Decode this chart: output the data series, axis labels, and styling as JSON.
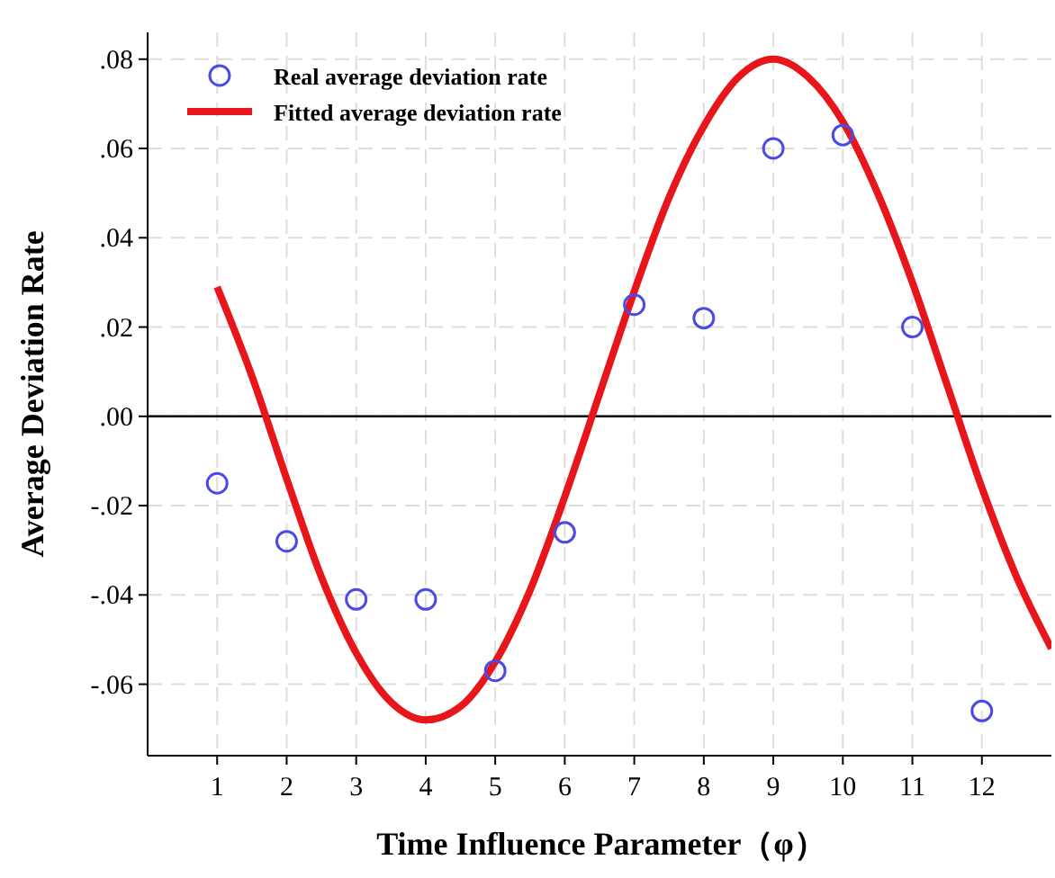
{
  "chart_data": {
    "type": "scatter",
    "xlabel": "Time Influence Parameter（φ）",
    "ylabel": "Average Deviation Rate",
    "xlim": [
      0,
      13
    ],
    "ylim": [
      -0.076,
      0.086
    ],
    "xticks": [
      1,
      2,
      3,
      4,
      5,
      6,
      7,
      8,
      9,
      10,
      11,
      12
    ],
    "yticks": [
      {
        "value": -0.06,
        "label": "-.06"
      },
      {
        "value": -0.04,
        "label": "-.04"
      },
      {
        "value": -0.02,
        "label": "-.02"
      },
      {
        "value": 0,
        "label": ".00"
      },
      {
        "value": 0.02,
        "label": ".02"
      },
      {
        "value": 0.04,
        "label": ".04"
      },
      {
        "value": 0.06,
        "label": ".06"
      },
      {
        "value": 0.08,
        "label": ".08"
      }
    ],
    "grid": true,
    "legend": "top left",
    "ref_lines": [
      {
        "axis": "y",
        "value": 0,
        "color": "#000000"
      }
    ],
    "series": [
      {
        "name": "Real average deviation rate",
        "marker": "circle",
        "color": "#4a4ae8",
        "x": [
          1,
          2,
          3,
          4,
          5,
          6,
          7,
          8,
          9,
          10,
          11,
          12
        ],
        "values": [
          -0.015,
          -0.028,
          -0.041,
          -0.041,
          -0.057,
          -0.026,
          0.025,
          0.022,
          0.06,
          0.063,
          0.02,
          -0.066
        ]
      },
      {
        "name": "Fitted average deviation rate",
        "type": "line",
        "color": "#e8161b",
        "x": [
          1,
          1.5,
          2,
          2.5,
          3,
          3.5,
          4,
          4.5,
          5,
          5.5,
          6,
          6.5,
          7,
          7.5,
          8,
          8.5,
          9,
          9.5,
          10,
          10.5,
          11,
          11.5,
          12,
          12.5,
          13
        ],
        "values": [
          0.029,
          0.009,
          -0.014,
          -0.036,
          -0.053,
          -0.064,
          -0.068,
          -0.065,
          -0.055,
          -0.039,
          -0.018,
          0.005,
          0.028,
          0.049,
          0.065,
          0.076,
          0.08,
          0.076,
          0.066,
          0.05,
          0.03,
          0.007,
          -0.016,
          -0.036,
          -0.052
        ]
      }
    ]
  }
}
